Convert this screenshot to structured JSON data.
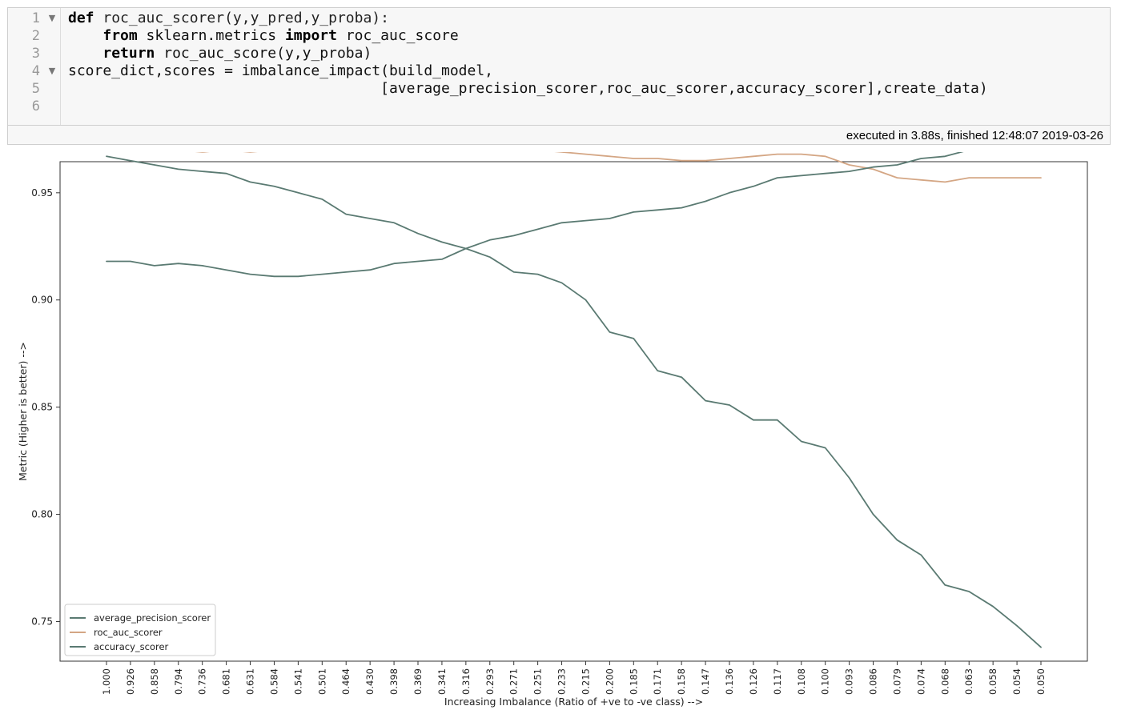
{
  "cell": {
    "line_numbers": [
      "1",
      "2",
      "3",
      "4",
      "5",
      "6"
    ],
    "fold_markers": [
      "▼",
      "▼"
    ],
    "code": {
      "l1_kw": "def",
      "l1_rest": " roc_auc_scorer(y,y_pred,y_proba):",
      "l2_indent": "    ",
      "l2_kw1": "from",
      "l2_mid": " sklearn.metrics ",
      "l2_kw2": "import",
      "l2_rest": " roc_auc_score",
      "l3_indent": "    ",
      "l3_kw": "return",
      "l3_rest": " roc_auc_score(y,y_proba)",
      "l4": "score_dict,scores = imbalance_impact(build_model,",
      "l5": "                                    [average_precision_scorer,roc_auc_scorer,accuracy_scorer],create_data)",
      "l6": ""
    },
    "execution_info": "executed in 3.88s, finished 12:48:07 2019-03-26"
  },
  "chart_data": {
    "type": "line",
    "xlabel": "Increasing Imbalance (Ratio of +ve to -ve class) -->",
    "ylabel": "Metric (Higher is better) -->",
    "categories": [
      "1.000",
      "0.926",
      "0.858",
      "0.794",
      "0.736",
      "0.681",
      "0.631",
      "0.584",
      "0.541",
      "0.501",
      "0.464",
      "0.430",
      "0.398",
      "0.369",
      "0.341",
      "0.316",
      "0.293",
      "0.271",
      "0.251",
      "0.233",
      "0.215",
      "0.200",
      "0.185",
      "0.171",
      "0.158",
      "0.147",
      "0.136",
      "0.126",
      "0.117",
      "0.108",
      "0.100",
      "0.093",
      "0.086",
      "0.079",
      "0.074",
      "0.068",
      "0.063",
      "0.058",
      "0.054",
      "0.050"
    ],
    "yticks": [
      0.75,
      0.8,
      0.85,
      0.9,
      0.95
    ],
    "ytick_labels": [
      "0.75",
      "0.80",
      "0.85",
      "0.90",
      "0.95"
    ],
    "ylim": [
      0.7315,
      0.9645
    ],
    "legend_position": "lower-left",
    "series": [
      {
        "name": "average_precision_scorer",
        "color": "#5a7a72",
        "values": [
          0.967,
          0.965,
          0.963,
          0.961,
          0.96,
          0.959,
          0.955,
          0.953,
          0.95,
          0.947,
          0.94,
          0.938,
          0.936,
          0.931,
          0.927,
          0.924,
          0.92,
          0.913,
          0.912,
          0.908,
          0.9,
          0.885,
          0.882,
          0.867,
          0.864,
          0.853,
          0.851,
          0.844,
          0.844,
          0.834,
          0.831,
          0.817,
          0.8,
          0.788,
          0.781,
          0.767,
          0.764,
          0.757,
          0.748,
          0.738
        ]
      },
      {
        "name": "roc_auc_scorer",
        "color": "#d4a684",
        "values": [
          0.97,
          0.97,
          0.97,
          0.97,
          0.969,
          0.97,
          0.969,
          0.97,
          0.97,
          0.971,
          0.97,
          0.971,
          0.971,
          0.971,
          0.971,
          0.971,
          0.97,
          0.97,
          0.97,
          0.969,
          0.968,
          0.967,
          0.966,
          0.966,
          0.965,
          0.965,
          0.966,
          0.967,
          0.968,
          0.968,
          0.967,
          0.963,
          0.961,
          0.957,
          0.956,
          0.955,
          0.957,
          0.957,
          0.957,
          0.957
        ]
      },
      {
        "name": "accuracy_scorer",
        "color": "#5a7a72",
        "values": [
          0.918,
          0.918,
          0.916,
          0.917,
          0.916,
          0.914,
          0.912,
          0.911,
          0.911,
          0.912,
          0.913,
          0.914,
          0.917,
          0.918,
          0.919,
          0.924,
          0.928,
          0.93,
          0.933,
          0.936,
          0.937,
          0.938,
          0.941,
          0.942,
          0.943,
          0.946,
          0.95,
          0.953,
          0.957,
          0.958,
          0.959,
          0.96,
          0.962,
          0.963,
          0.966,
          0.967,
          0.97,
          0.972,
          0.973,
          0.973
        ]
      }
    ]
  }
}
